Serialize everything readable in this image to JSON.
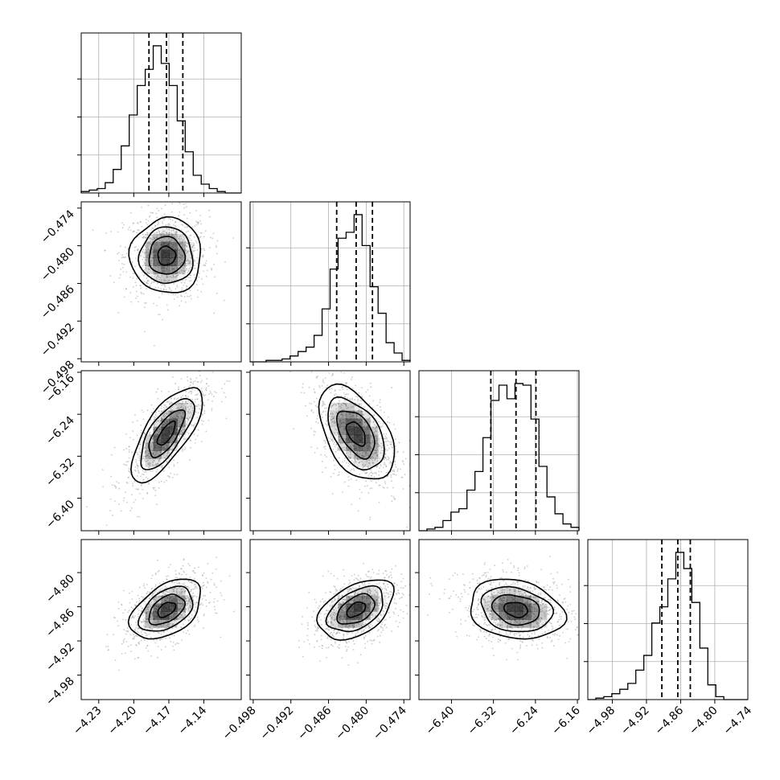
{
  "chart_data": {
    "type": "corner",
    "title": "",
    "parameters": [
      {
        "label": "",
        "range": [
          -4.245,
          -4.108
        ],
        "ticks": [
          "-4.23",
          "-4.20",
          "-4.17",
          "-4.14"
        ],
        "tick_values": [
          -4.23,
          -4.2,
          -4.17,
          -4.14
        ],
        "quantiles": [
          -4.187,
          -4.172,
          -4.158
        ],
        "histogram": [
          1,
          2,
          3,
          7,
          16,
          32,
          53,
          73,
          84,
          100,
          88,
          73,
          49,
          28,
          12,
          6,
          3,
          1,
          0,
          0
        ]
      },
      {
        "label": "",
        "range": [
          -0.4985,
          -0.473
        ],
        "ticks": [
          "-0.498",
          "-0.492",
          "-0.486",
          "-0.480",
          "-0.474"
        ],
        "tick_values": [
          -0.498,
          -0.492,
          -0.486,
          -0.48,
          -0.474
        ],
        "quantiles": [
          -0.4847,
          -0.4816,
          -0.479
        ],
        "histogram": [
          0,
          0,
          1,
          1,
          2,
          4,
          7,
          10,
          18,
          36,
          63,
          84,
          88,
          100,
          79,
          51,
          33,
          13,
          6,
          1
        ]
      },
      {
        "label": "",
        "range": [
          -6.462,
          -6.157
        ],
        "ticks": [
          "-6.40",
          "-6.32",
          "-6.24",
          "-6.16"
        ],
        "tick_values": [
          -6.4,
          -6.32,
          -6.24,
          -6.16
        ],
        "quantiles": [
          -6.325,
          -6.277,
          -6.239
        ],
        "histogram": [
          0,
          1,
          2,
          6,
          11,
          13,
          24,
          35,
          55,
          77,
          86,
          78,
          87,
          86,
          66,
          38,
          20,
          10,
          4,
          2
        ]
      },
      {
        "label": "",
        "range": [
          -5.023,
          -4.742
        ],
        "ticks": [
          "-4.98",
          "-4.92",
          "-4.86",
          "-4.80",
          "-4.74"
        ],
        "tick_values": [
          -4.98,
          -4.92,
          -4.86,
          -4.8,
          -4.74
        ],
        "quantiles": [
          -4.893,
          -4.865,
          -4.843
        ],
        "histogram": [
          0,
          1,
          2,
          4,
          7,
          11,
          20,
          30,
          52,
          63,
          82,
          100,
          89,
          66,
          35,
          10,
          2,
          0,
          0,
          0
        ]
      }
    ],
    "pairs": [
      {
        "x": 0,
        "y": 1,
        "corr": 0.0
      },
      {
        "x": 0,
        "y": 2,
        "corr": 0.72
      },
      {
        "x": 1,
        "y": 2,
        "corr": -0.48
      },
      {
        "x": 0,
        "y": 3,
        "corr": 0.45
      },
      {
        "x": 1,
        "y": 3,
        "corr": 0.45
      },
      {
        "x": 2,
        "y": 3,
        "corr": -0.2
      }
    ],
    "contour_levels": [
      0.5,
      1.0,
      1.5,
      2.0
    ],
    "grid": true,
    "colors": {
      "line": "#000000",
      "points": "#a0a0a0",
      "grid": "#b0b0b0",
      "density": "#000000"
    }
  }
}
